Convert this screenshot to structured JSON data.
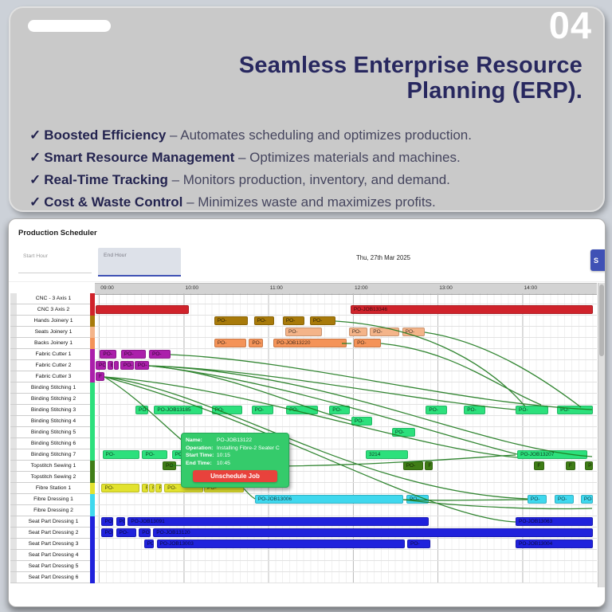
{
  "slide": {
    "page_number": "04",
    "title_lines": [
      "Seamless Enterprise Resource",
      "Planning (ERP)."
    ],
    "check_glyph": "✓",
    "separator": "–",
    "bullets": [
      {
        "lead": "Boosted Efficiency",
        "rest": "Automates scheduling and optimizes production."
      },
      {
        "lead": "Smart Resource Management",
        "rest": "Optimizes materials and machines."
      },
      {
        "lead": "Real-Time Tracking",
        "rest": "Monitors production, inventory, and demand."
      },
      {
        "lead": "Cost & Waste Control",
        "rest": "Minimizes waste and maximizes profits."
      }
    ],
    "title_color": "#28285f"
  },
  "app": {
    "title": "Production Scheduler",
    "accent_color": "#3f51b5",
    "toolbar": {
      "start_hour_label": "Start Hour",
      "end_hour_label": "End Hour",
      "date": "Thu, 27th Mar 2025",
      "action_button_label": "S"
    },
    "timeline": {
      "start_hour": 8.95,
      "end_hour": 14.88,
      "ticks": [
        {
          "label": "09:00",
          "hour": 9
        },
        {
          "label": "10:00",
          "hour": 10
        },
        {
          "label": "11:00",
          "hour": 11
        },
        {
          "label": "12:00",
          "hour": 12
        },
        {
          "label": "13:00",
          "hour": 13
        },
        {
          "label": "14:00",
          "hour": 14
        }
      ]
    },
    "group_colors": {
      "cnc": "#d0232b",
      "hands": "#a87a0a",
      "seats": "#f4b489",
      "backs": "#f49358",
      "fabric": "#ab1fab",
      "binding": "#2ce07c",
      "topstitch": "#3f7d16",
      "fibrestation": "#e2e22e",
      "fibredressing": "#3fd8ee",
      "spd": "#2022dc"
    },
    "rows": [
      {
        "name": "CNC - 3 Axis 1",
        "group": "cnc",
        "bars": []
      },
      {
        "name": "CNC 3 Axis 2",
        "group": "cnc",
        "bars": [
          [
            8.96,
            10.06,
            ""
          ],
          [
            11.97,
            14.83,
            "PO-JOB13346"
          ]
        ]
      },
      {
        "name": "Hands Joinery 1",
        "group": "hands",
        "bars": [
          [
            10.36,
            10.76,
            "PO-"
          ],
          [
            10.83,
            11.07,
            "PO-"
          ],
          [
            11.17,
            11.43,
            "PO-"
          ],
          [
            11.49,
            11.79,
            "PO-"
          ]
        ]
      },
      {
        "name": "Seats Joinery 1",
        "group": "seats",
        "bars": [
          [
            11.2,
            11.63,
            "PO-"
          ],
          [
            11.95,
            12.17,
            "PO-"
          ],
          [
            12.2,
            12.55,
            "PO-"
          ],
          [
            12.58,
            12.85,
            "PO-"
          ]
        ]
      },
      {
        "name": "Backs Joinery 1",
        "group": "backs",
        "bars": [
          [
            10.36,
            10.74,
            "PO-"
          ],
          [
            10.77,
            10.94,
            "PO-"
          ],
          [
            11.06,
            11.92,
            "PO-JOB13220"
          ],
          [
            12.01,
            12.33,
            "PO-"
          ]
        ]
      },
      {
        "name": "Fabric Cutter 1",
        "group": "fabric",
        "bars": [
          [
            9.01,
            9.2,
            "PO-"
          ],
          [
            9.26,
            9.55,
            "PO-"
          ],
          [
            9.59,
            9.84,
            "PO-"
          ]
        ]
      },
      {
        "name": "Fabric Cutter 2",
        "group": "fabric",
        "bars": [
          [
            8.96,
            9.08,
            "PO-"
          ],
          [
            9.1,
            9.17,
            "E"
          ],
          [
            9.18,
            9.23,
            "E"
          ],
          [
            9.25,
            9.41,
            "PO-"
          ],
          [
            9.42,
            9.59,
            "PO-"
          ]
        ]
      },
      {
        "name": "Fabric Cutter 3",
        "group": "fabric",
        "bars": [
          [
            8.96,
            9.06,
            "F"
          ]
        ]
      },
      {
        "name": "Binding Stitching 1",
        "group": "binding",
        "bars": []
      },
      {
        "name": "Binding Stitching 2",
        "group": "binding",
        "bars": []
      },
      {
        "name": "Binding Stitching 3",
        "group": "binding",
        "bars": [
          [
            9.43,
            9.58,
            "PO-"
          ],
          [
            9.65,
            10.22,
            "PO-JOB13185"
          ],
          [
            10.33,
            10.69,
            "PO-"
          ],
          [
            10.8,
            11.06,
            "PO-"
          ],
          [
            11.21,
            11.59,
            "PO-"
          ],
          [
            11.72,
            11.96,
            "PO-"
          ],
          [
            12.86,
            13.11,
            "PO-"
          ],
          [
            13.31,
            13.56,
            "PO-"
          ],
          [
            13.92,
            14.31,
            "PO-"
          ],
          [
            14.41,
            14.83,
            "PO-"
          ]
        ]
      },
      {
        "name": "Binding Stitching 4",
        "group": "binding",
        "bars": [
          [
            11.98,
            12.23,
            "PO-"
          ]
        ]
      },
      {
        "name": "Binding Stitching 5",
        "group": "binding",
        "bars": [
          [
            12.46,
            12.73,
            "PO-"
          ]
        ]
      },
      {
        "name": "Binding Stitching 6",
        "group": "binding",
        "bars": []
      },
      {
        "name": "Binding Stitching 7",
        "group": "binding",
        "bars": [
          [
            9.04,
            9.48,
            "PO-"
          ],
          [
            9.51,
            9.81,
            "PO-"
          ],
          [
            9.86,
            10.21,
            "PO-"
          ],
          [
            10.3,
            10.49,
            "PO-"
          ],
          [
            10.55,
            10.9,
            "PO-"
          ],
          [
            12.15,
            12.65,
            "3214"
          ],
          [
            13.94,
            14.77,
            "PO-JOB13207"
          ]
        ]
      },
      {
        "name": "Topstitch Sewing 1",
        "group": "topstitch",
        "bars": [
          [
            9.75,
            9.91,
            "PO-"
          ],
          [
            10.09,
            10.26,
            "PO-"
          ],
          [
            10.41,
            10.64,
            "PO-"
          ],
          [
            12.59,
            12.83,
            "PO-"
          ],
          [
            12.85,
            12.94,
            "F"
          ],
          [
            14.14,
            14.26,
            "F"
          ],
          [
            14.51,
            14.63,
            "F"
          ],
          [
            14.74,
            14.83,
            "P"
          ]
        ]
      },
      {
        "name": "Topstitch Sewing 2",
        "group": "topstitch",
        "bars": []
      },
      {
        "name": "Fibre Station 1",
        "group": "fibrestation",
        "bars": [
          [
            9.03,
            9.48,
            "PO-"
          ],
          [
            9.51,
            9.58,
            "F"
          ],
          [
            9.59,
            9.66,
            "F"
          ],
          [
            9.67,
            9.74,
            "F"
          ],
          [
            9.77,
            10.23,
            "PO-"
          ],
          [
            10.24,
            10.71,
            "PO-"
          ]
        ]
      },
      {
        "name": "Fibre Dressing 1",
        "group": "fibredressing",
        "bars": [
          [
            10.84,
            12.59,
            "PO-JOB13006"
          ],
          [
            12.63,
            12.89,
            "PO-"
          ],
          [
            14.06,
            14.29,
            "PO-"
          ],
          [
            14.38,
            14.61,
            "PO-"
          ],
          [
            14.69,
            14.83,
            "PO-"
          ]
        ]
      },
      {
        "name": "Fibre Dressing 2",
        "group": "fibredressing",
        "bars": []
      },
      {
        "name": "Seat Part Dressing 1",
        "group": "spd",
        "bars": [
          [
            9.03,
            9.17,
            "PO-"
          ],
          [
            9.2,
            9.31,
            "PO-"
          ],
          [
            9.34,
            12.89,
            "PO-JOB13091"
          ],
          [
            13.92,
            14.83,
            "PO-JOB13063"
          ]
        ]
      },
      {
        "name": "Seat Part Dressing 2",
        "group": "spd",
        "bars": [
          [
            9.03,
            9.17,
            "PO-"
          ],
          [
            9.2,
            9.44,
            "PO-"
          ],
          [
            9.47,
            9.61,
            "PO-"
          ],
          [
            9.64,
            14.83,
            "PO-JOB13120"
          ]
        ]
      },
      {
        "name": "Seat Part Dressing 3",
        "group": "spd",
        "bars": [
          [
            9.53,
            9.65,
            "PO"
          ],
          [
            9.68,
            12.61,
            "PO-JOB13003"
          ],
          [
            12.64,
            12.91,
            "PO-"
          ],
          [
            13.92,
            14.83,
            "PO-JOB13004"
          ]
        ]
      },
      {
        "name": "Seat Part Dressing 4",
        "group": "spd",
        "bars": []
      },
      {
        "name": "Seat Part Dressing 5",
        "group": "spd",
        "bars": []
      },
      {
        "name": "Seat Part Dressing 6",
        "group": "spd",
        "bars": []
      }
    ],
    "tooltip": {
      "fields": [
        {
          "label": "Name:",
          "value": "PO-JOB13122"
        },
        {
          "label": "Operation:",
          "value": "Installing Fibre-2 Seater C"
        },
        {
          "label": "Start Time:",
          "value": "10:15"
        },
        {
          "label": "End Time:",
          "value": "10:45"
        }
      ],
      "button_label": "Unschedule Job",
      "bg_color": "#35cb6b",
      "button_color": "#e8423c"
    }
  }
}
